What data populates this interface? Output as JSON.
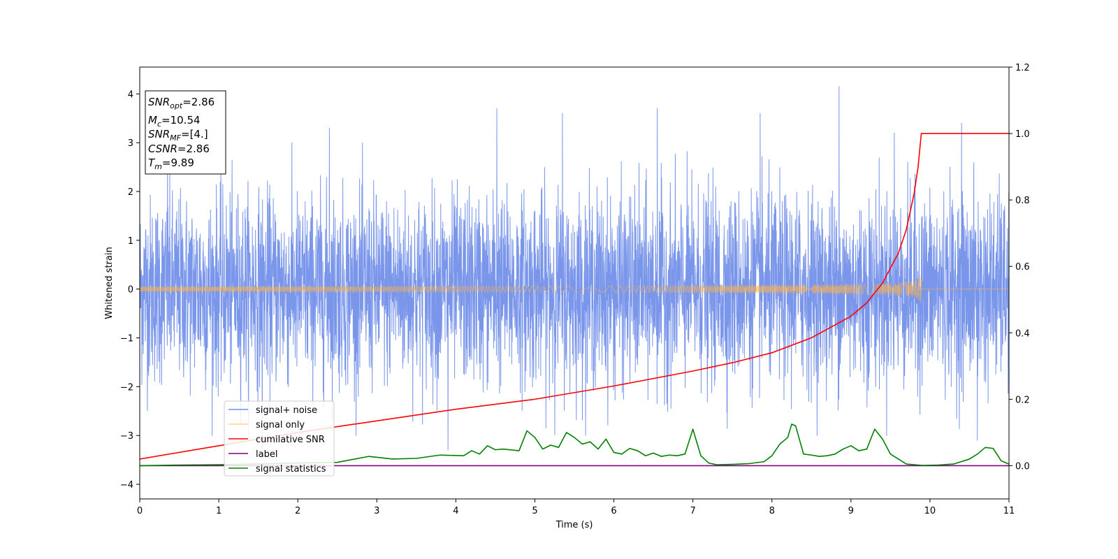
{
  "chart_data": {
    "type": "line",
    "title": "",
    "xlabel": "Time (s)",
    "ylabel": "Whitened strain",
    "y2label": "",
    "xlim": [
      0,
      11
    ],
    "ylim": [
      -4.3,
      4.55
    ],
    "y2lim": [
      -0.1,
      1.2
    ],
    "xticks": [
      0,
      1,
      2,
      3,
      4,
      5,
      6,
      7,
      8,
      9,
      10,
      11
    ],
    "yticks": [
      -4,
      -3,
      -2,
      -1,
      0,
      1,
      2,
      3,
      4
    ],
    "y2ticks": [
      "0.0",
      "0.2",
      "0.4",
      "0.6",
      "0.8",
      "1.0",
      "1.2"
    ],
    "grid": false,
    "legend_position": "lower-left",
    "colors": {
      "noise": "#4169e1",
      "signal": "#ffb347",
      "csnr": "#ff0000",
      "label": "#800080",
      "stats": "#008000"
    },
    "info_box": {
      "lines": [
        {
          "base": "SNR",
          "sub": "opt",
          "value": "=2.86"
        },
        {
          "base": "M",
          "sub": "c",
          "value": "=10.54"
        },
        {
          "base": "SNR",
          "sub": "MF",
          "value": "=[4.]"
        },
        {
          "base": "CSNR",
          "sub": "",
          "value": "=2.86"
        },
        {
          "base": "T",
          "sub": "m",
          "value": "=9.89"
        }
      ]
    },
    "series": [
      {
        "name": "signal+ noise",
        "axis": "left",
        "style": "noise",
        "noise_sigma": 0.95,
        "peaks": [
          [
            0.35,
            2.5
          ],
          [
            1.55,
            -3.5
          ],
          [
            2.4,
            3.3
          ],
          [
            3.9,
            -3.3
          ],
          [
            4.52,
            3.7
          ],
          [
            5.35,
            3.6
          ],
          [
            6.55,
            3.7
          ],
          [
            7.85,
            3.6
          ],
          [
            8.85,
            4.15
          ],
          [
            9.55,
            3.2
          ],
          [
            10.4,
            3.4
          ],
          [
            10.6,
            -3.1
          ]
        ]
      },
      {
        "name": "signal only",
        "axis": "left",
        "style": "chirp",
        "merger_time": 9.89,
        "peak_amplitude": 0.38
      },
      {
        "name": "cumilative SNR",
        "axis": "right",
        "x": [
          0,
          1,
          2,
          3,
          4,
          5,
          6,
          7,
          7.5,
          8,
          8.5,
          9,
          9.2,
          9.4,
          9.6,
          9.7,
          9.8,
          9.85,
          9.89,
          11
        ],
        "y": [
          0.02,
          0.06,
          0.1,
          0.135,
          0.17,
          0.2,
          0.24,
          0.285,
          0.31,
          0.34,
          0.385,
          0.45,
          0.49,
          0.55,
          0.64,
          0.71,
          0.82,
          0.9,
          1.0,
          1.0
        ]
      },
      {
        "name": "label",
        "axis": "right",
        "x": [
          0,
          11
        ],
        "y": [
          0,
          0
        ]
      },
      {
        "name": "signal statistics",
        "axis": "right",
        "x": [
          0,
          0.5,
          1,
          1.5,
          2,
          2.5,
          2.9,
          3.2,
          3.5,
          3.8,
          4.1,
          4.2,
          4.3,
          4.4,
          4.5,
          4.6,
          4.8,
          4.9,
          5.0,
          5.1,
          5.2,
          5.3,
          5.4,
          5.5,
          5.6,
          5.7,
          5.8,
          5.9,
          6.0,
          6.1,
          6.2,
          6.3,
          6.4,
          6.5,
          6.6,
          6.7,
          6.8,
          6.9,
          7.0,
          7.1,
          7.2,
          7.3,
          7.5,
          7.7,
          7.9,
          8.0,
          8.1,
          8.2,
          8.25,
          8.3,
          8.4,
          8.5,
          8.6,
          8.7,
          8.8,
          8.9,
          9.0,
          9.1,
          9.2,
          9.3,
          9.4,
          9.5,
          9.7,
          9.9,
          10.1,
          10.3,
          10.5,
          10.6,
          10.7,
          10.8,
          10.9,
          11.0
        ],
        "y": [
          0.0,
          0.002,
          0.003,
          0.005,
          0.008,
          0.01,
          0.028,
          0.02,
          0.022,
          0.032,
          0.03,
          0.045,
          0.035,
          0.06,
          0.048,
          0.05,
          0.045,
          0.105,
          0.085,
          0.05,
          0.062,
          0.055,
          0.1,
          0.085,
          0.065,
          0.072,
          0.05,
          0.08,
          0.04,
          0.035,
          0.052,
          0.045,
          0.03,
          0.038,
          0.028,
          0.032,
          0.03,
          0.035,
          0.11,
          0.03,
          0.008,
          0.003,
          0.004,
          0.006,
          0.012,
          0.03,
          0.065,
          0.085,
          0.125,
          0.12,
          0.035,
          0.032,
          0.028,
          0.03,
          0.035,
          0.05,
          0.06,
          0.045,
          0.05,
          0.11,
          0.08,
          0.035,
          0.005,
          0.001,
          0.002,
          0.005,
          0.02,
          0.035,
          0.055,
          0.052,
          0.015,
          0.005
        ]
      }
    ]
  }
}
